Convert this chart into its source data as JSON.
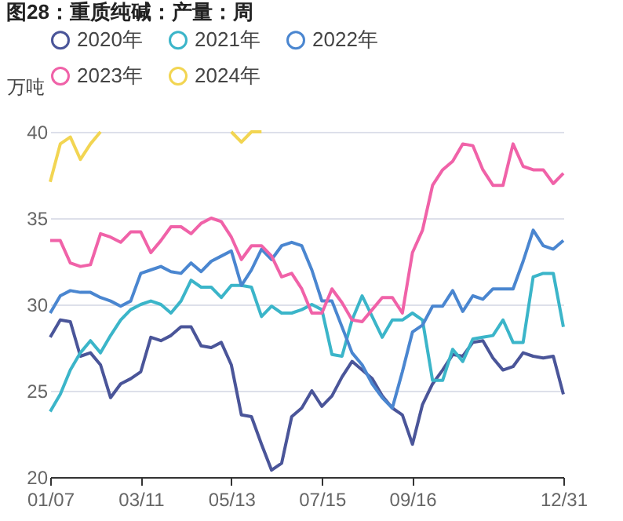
{
  "chart_data": {
    "type": "line",
    "title": "图28：重质纯碱：产量：周",
    "ylabel": "万吨",
    "categories": [
      "01/07",
      null,
      null,
      null,
      null,
      null,
      null,
      null,
      null,
      "03/11",
      null,
      null,
      null,
      null,
      null,
      null,
      null,
      null,
      "05/13",
      null,
      null,
      null,
      null,
      null,
      null,
      null,
      null,
      "07/15",
      null,
      null,
      null,
      null,
      null,
      null,
      null,
      null,
      "09/16",
      null,
      null,
      null,
      null,
      null,
      null,
      null,
      null,
      null,
      null,
      null,
      null,
      null,
      null,
      "12/31"
    ],
    "series": [
      {
        "name": "2020年",
        "color": "#4a5599",
        "values": [
          28.1,
          29.1,
          29.0,
          27.0,
          27.2,
          26.5,
          24.6,
          25.4,
          25.7,
          26.1,
          28.1,
          27.9,
          28.2,
          28.7,
          28.7,
          27.6,
          27.5,
          27.8,
          26.5,
          23.6,
          23.5,
          21.9,
          20.4,
          20.8,
          23.5,
          24.0,
          25.0,
          24.1,
          24.7,
          25.8,
          26.7,
          26.2,
          25.7,
          24.7,
          24.0,
          23.6,
          21.9,
          24.2,
          25.4,
          26.2,
          27.1,
          27.0,
          27.8,
          27.9,
          26.9,
          26.2,
          26.4,
          27.2,
          27.0,
          26.9,
          27.0,
          24.8
        ]
      },
      {
        "name": "2021年",
        "color": "#3bb5c9",
        "values": [
          23.8,
          24.8,
          26.2,
          27.2,
          27.9,
          27.2,
          28.2,
          29.1,
          29.7,
          30.0,
          30.2,
          30.0,
          29.5,
          30.2,
          31.4,
          31.0,
          31.0,
          30.4,
          31.1,
          31.1,
          31.0,
          29.3,
          29.9,
          29.5,
          29.5,
          29.7,
          30.0,
          29.7,
          27.1,
          27.0,
          29.1,
          30.5,
          29.3,
          28.1,
          29.1,
          29.1,
          29.5,
          29.1,
          25.6,
          25.6,
          27.4,
          26.7,
          28.0,
          28.1,
          28.2,
          29.1,
          27.8,
          27.8,
          31.6,
          31.8,
          31.8,
          28.7
        ]
      },
      {
        "name": "2022年",
        "color": "#4a86d0",
        "values": [
          29.5,
          30.5,
          30.8,
          30.7,
          30.7,
          30.4,
          30.2,
          29.9,
          30.2,
          31.8,
          32.0,
          32.2,
          31.9,
          31.8,
          32.4,
          31.9,
          32.5,
          32.8,
          33.1,
          31.1,
          32.0,
          33.2,
          32.6,
          33.4,
          33.6,
          33.4,
          32.0,
          30.2,
          30.2,
          28.7,
          27.2,
          26.5,
          25.4,
          24.6,
          24.0,
          26.1,
          28.4,
          28.8,
          29.9,
          29.9,
          30.8,
          29.6,
          30.5,
          30.3,
          30.9,
          30.9,
          30.9,
          32.5,
          34.3,
          33.4,
          33.2,
          33.7
        ]
      },
      {
        "name": "2023年",
        "color": "#f062a8",
        "values": [
          33.7,
          33.7,
          32.4,
          32.2,
          32.3,
          34.1,
          33.9,
          33.6,
          34.2,
          34.2,
          33.0,
          33.7,
          34.5,
          34.5,
          34.1,
          34.7,
          35.0,
          34.8,
          33.9,
          32.6,
          33.4,
          33.4,
          32.8,
          31.6,
          31.8,
          30.9,
          29.5,
          29.5,
          30.9,
          30.1,
          29.1,
          29.0,
          29.7,
          30.4,
          30.4,
          29.5,
          33.0,
          34.3,
          36.9,
          37.8,
          38.3,
          39.3,
          39.2,
          37.8,
          36.9,
          36.9,
          39.3,
          38.0,
          37.8,
          37.8,
          37.0,
          37.6
        ]
      },
      {
        "name": "2024年",
        "color": "#f2d552",
        "values": [
          37.1,
          39.3,
          39.7,
          38.4,
          39.3,
          40.0,
          null,
          null,
          null,
          null,
          null,
          null,
          null,
          null,
          null,
          null,
          null,
          null,
          40.0,
          39.4,
          40.0,
          40.0,
          null,
          null,
          null,
          null,
          null,
          null,
          null,
          null,
          null,
          null,
          null,
          null,
          null,
          null,
          null,
          null,
          null,
          null,
          null,
          null,
          null,
          null,
          null,
          null,
          null,
          null,
          null,
          null,
          null,
          null
        ]
      }
    ],
    "ylim": [
      20,
      40
    ],
    "yticks": [
      20,
      25,
      30,
      35,
      40
    ],
    "grid": "y",
    "legend": "top",
    "marker": "none",
    "line_style": "solid"
  }
}
